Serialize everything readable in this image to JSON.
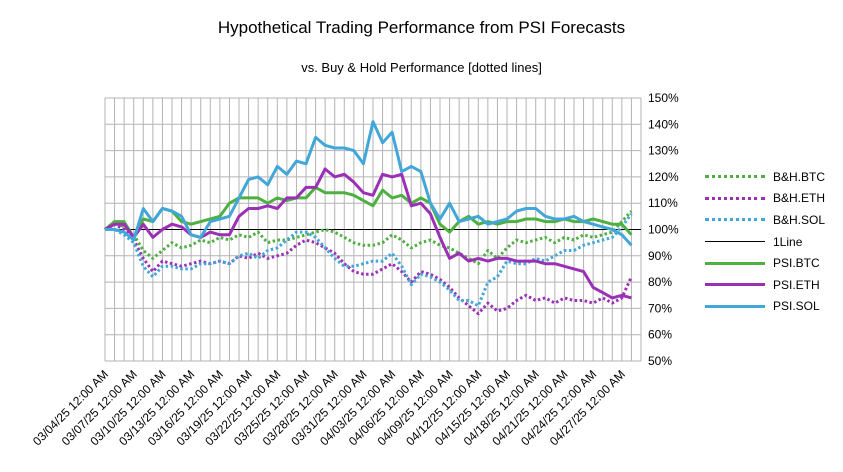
{
  "chart_data": {
    "type": "line",
    "title": "Hypothetical Trading Performance from PSI Forecasts",
    "subtitle": "vs. Buy & Hold Performance [dotted lines]",
    "xlabel": "",
    "ylabel": "",
    "ylim": [
      0.5,
      1.5
    ],
    "y_ticks": [
      "50%",
      "60%",
      "70%",
      "80%",
      "90%",
      "100%",
      "110%",
      "120%",
      "130%",
      "140%",
      "150%"
    ],
    "x_tick_labels": [
      "03/04/25 12:00 AM",
      "03/07/25 12:00 AM",
      "03/10/25 12:00 AM",
      "03/13/25 12:00 AM",
      "03/16/25 12:00 AM",
      "03/19/25 12:00 AM",
      "03/22/25 12:00 AM",
      "03/25/25 12:00 AM",
      "03/28/25 12:00 AM",
      "03/31/25 12:00 AM",
      "04/03/25 12:00 AM",
      "04/06/25 12:00 AM",
      "04/09/25 12:00 AM",
      "04/12/25 12:00 AM",
      "04/15/25 12:00 AM",
      "04/18/25 12:00 AM",
      "04/21/25 12:00 AM",
      "04/24/25 12:00 AM",
      "04/27/25 12:00 AM"
    ],
    "x_start": "2025-03-04",
    "x_end": "2025-04-29",
    "grid": true,
    "legend_position": "right",
    "series": [
      {
        "name": "B&H.BTC",
        "style": "dotted",
        "color": "#4eb040",
        "values": [
          1.0,
          1.03,
          1.01,
          0.98,
          0.92,
          0.89,
          0.92,
          0.95,
          0.93,
          0.94,
          0.96,
          0.95,
          0.97,
          0.96,
          0.98,
          0.97,
          0.99,
          0.95,
          0.96,
          0.96,
          0.97,
          0.98,
          0.99,
          1.0,
          0.99,
          0.97,
          0.95,
          0.94,
          0.94,
          0.95,
          0.98,
          0.96,
          0.93,
          0.95,
          0.96,
          0.94,
          0.93,
          0.91,
          0.89,
          0.87,
          0.92,
          0.89,
          0.93,
          0.96,
          0.95,
          0.96,
          0.97,
          0.95,
          0.97,
          0.96,
          0.98,
          0.97,
          0.98,
          0.99,
          1.03,
          1.07
        ]
      },
      {
        "name": "B&H.ETH",
        "style": "dotted",
        "color": "#9b30b7",
        "values": [
          1.0,
          1.02,
          1.0,
          0.96,
          0.89,
          0.84,
          0.88,
          0.87,
          0.86,
          0.87,
          0.88,
          0.87,
          0.88,
          0.87,
          0.9,
          0.89,
          0.91,
          0.89,
          0.9,
          0.91,
          0.94,
          0.96,
          0.95,
          0.93,
          0.91,
          0.87,
          0.84,
          0.83,
          0.83,
          0.85,
          0.87,
          0.84,
          0.8,
          0.84,
          0.83,
          0.81,
          0.78,
          0.74,
          0.71,
          0.68,
          0.72,
          0.69,
          0.7,
          0.73,
          0.75,
          0.73,
          0.74,
          0.72,
          0.74,
          0.73,
          0.73,
          0.72,
          0.74,
          0.72,
          0.74,
          0.82
        ]
      },
      {
        "name": "B&H.SOL",
        "style": "dotted",
        "color": "#41a6d9",
        "values": [
          1.0,
          1.0,
          0.98,
          0.95,
          0.86,
          0.82,
          0.86,
          0.86,
          0.85,
          0.85,
          0.87,
          0.87,
          0.88,
          0.87,
          0.9,
          0.91,
          0.89,
          0.92,
          0.93,
          0.96,
          0.99,
          0.99,
          0.97,
          0.93,
          0.89,
          0.86,
          0.86,
          0.87,
          0.88,
          0.88,
          0.91,
          0.86,
          0.79,
          0.83,
          0.82,
          0.8,
          0.77,
          0.73,
          0.73,
          0.71,
          0.8,
          0.82,
          0.88,
          0.87,
          0.87,
          0.89,
          0.88,
          0.9,
          0.92,
          0.92,
          0.94,
          0.95,
          0.96,
          0.97,
          1.01,
          1.06
        ]
      },
      {
        "name": "1Line",
        "style": "solid-thin",
        "color": "#000000",
        "values": [
          1.0,
          1.0,
          1.0,
          1.0,
          1.0,
          1.0,
          1.0,
          1.0,
          1.0,
          1.0,
          1.0,
          1.0,
          1.0,
          1.0,
          1.0,
          1.0,
          1.0,
          1.0,
          1.0,
          1.0,
          1.0,
          1.0,
          1.0,
          1.0,
          1.0,
          1.0,
          1.0,
          1.0,
          1.0,
          1.0,
          1.0,
          1.0,
          1.0,
          1.0,
          1.0,
          1.0,
          1.0,
          1.0,
          1.0,
          1.0,
          1.0,
          1.0,
          1.0,
          1.0,
          1.0,
          1.0,
          1.0,
          1.0,
          1.0,
          1.0,
          1.0,
          1.0,
          1.0,
          1.0,
          1.0,
          1.0
        ]
      },
      {
        "name": "PSI.BTC",
        "style": "solid",
        "color": "#4eb040",
        "values": [
          1.0,
          1.03,
          1.03,
          0.97,
          1.04,
          1.03,
          1.08,
          1.07,
          1.03,
          1.02,
          1.03,
          1.04,
          1.05,
          1.1,
          1.12,
          1.12,
          1.12,
          1.1,
          1.12,
          1.11,
          1.12,
          1.12,
          1.16,
          1.14,
          1.14,
          1.14,
          1.13,
          1.11,
          1.09,
          1.15,
          1.12,
          1.13,
          1.1,
          1.12,
          1.1,
          1.02,
          0.99,
          1.03,
          1.05,
          1.02,
          1.03,
          1.02,
          1.03,
          1.03,
          1.04,
          1.04,
          1.03,
          1.03,
          1.04,
          1.03,
          1.03,
          1.04,
          1.03,
          1.02,
          1.02,
          0.98
        ]
      },
      {
        "name": "PSI.ETH",
        "style": "solid",
        "color": "#9b30b7",
        "values": [
          1.0,
          1.02,
          1.02,
          0.97,
          1.02,
          0.97,
          1.0,
          1.02,
          1.01,
          0.98,
          0.97,
          0.99,
          0.98,
          0.98,
          1.05,
          1.08,
          1.08,
          1.09,
          1.08,
          1.12,
          1.12,
          1.16,
          1.16,
          1.23,
          1.2,
          1.21,
          1.18,
          1.14,
          1.13,
          1.21,
          1.2,
          1.21,
          1.09,
          1.1,
          1.06,
          0.97,
          0.89,
          0.91,
          0.88,
          0.89,
          0.88,
          0.89,
          0.89,
          0.88,
          0.88,
          0.88,
          0.87,
          0.87,
          0.86,
          0.85,
          0.84,
          0.78,
          0.76,
          0.74,
          0.75,
          0.74
        ]
      },
      {
        "name": "PSI.SOL",
        "style": "solid",
        "color": "#41a6d9",
        "values": [
          1.0,
          1.0,
          0.99,
          0.96,
          1.08,
          1.03,
          1.08,
          1.07,
          1.05,
          0.98,
          0.97,
          1.03,
          1.04,
          1.05,
          1.12,
          1.19,
          1.2,
          1.17,
          1.24,
          1.21,
          1.26,
          1.25,
          1.35,
          1.32,
          1.31,
          1.31,
          1.3,
          1.25,
          1.41,
          1.33,
          1.37,
          1.22,
          1.24,
          1.22,
          1.1,
          1.04,
          1.1,
          1.03,
          1.04,
          1.05,
          1.02,
          1.03,
          1.04,
          1.07,
          1.08,
          1.08,
          1.05,
          1.04,
          1.04,
          1.05,
          1.03,
          1.02,
          1.01,
          1.0,
          0.98,
          0.94
        ]
      }
    ]
  }
}
